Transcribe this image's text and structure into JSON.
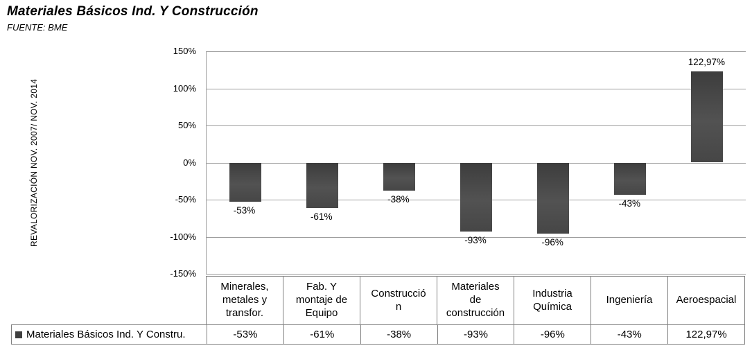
{
  "header": {
    "title": "Materiales Básicos Ind. Y Construcción",
    "source": "FUENTE: BME"
  },
  "chart_data": {
    "type": "bar",
    "title": "Materiales Básicos Ind. Y Construcción",
    "xlabel": "",
    "ylabel": "REVALORIZACIÓN NOV. 2007/ NOV. 2014",
    "ylim": [
      -150,
      150
    ],
    "yticks": [
      150,
      100,
      50,
      0,
      -50,
      -100,
      -150
    ],
    "ytick_labels": [
      "150%",
      "100%",
      "50%",
      "0%",
      "-50%",
      "-100%",
      "-150%"
    ],
    "grid": true,
    "legend_position": "bottom-table",
    "categories": [
      "Minerales, metales y transfor.",
      "Fab. Y montaje de Equipo",
      "Construcción",
      "Materiales de construcción",
      "Industria Química",
      "Ingeniería",
      "Aeroespacial"
    ],
    "series": [
      {
        "name": "Materiales Básicos Ind. Y Constru.",
        "values": [
          -53,
          -61,
          -38,
          -93,
          -96,
          -43,
          122.97
        ],
        "labels": [
          "-53%",
          "-61%",
          "-38%",
          "-93%",
          "-96%",
          "-43%",
          "122,97%"
        ],
        "color": "#4a4a4a"
      }
    ]
  },
  "table": {
    "legend_label": "Materiales Básicos Ind. Y Constru.",
    "columns": [
      "Minerales,\nmetales y\ntransfor.",
      "Fab. Y\nmontaje de\nEquipo",
      "Construcció\nn",
      "Materiales\nde\nconstrucción",
      "Industria\nQuímica",
      "Ingeniería",
      "Aeroespacial"
    ],
    "values": [
      "-53%",
      "-61%",
      "-38%",
      "-93%",
      "-96%",
      "-43%",
      "122,97%"
    ]
  },
  "colors": {
    "bar": "#4a4a4a",
    "gridline": "#9d9d9d",
    "table_border": "#7f7f7f",
    "text": "#000000",
    "background": "#ffffff"
  }
}
